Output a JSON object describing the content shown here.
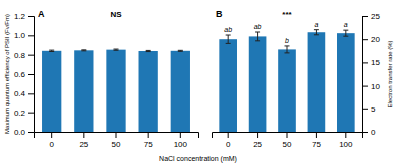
{
  "chart_data": [
    {
      "type": "bar",
      "categories": [
        "0",
        "25",
        "50",
        "75",
        "100"
      ],
      "values": [
        0.84,
        0.845,
        0.852,
        0.838,
        0.84
      ],
      "errors": [
        0.007,
        0.005,
        0.006,
        0.006,
        0.005
      ],
      "ylabel": "Maximum quantum efficiency of PSII (Fv/Fm)",
      "xlabel": "NaCl concentration (mM)",
      "ylim": [
        0.0,
        1.2
      ],
      "yticks": [
        {
          "value": 0,
          "label": "0.0"
        },
        0.2,
        0.4,
        0.6,
        0.8,
        {
          "value": 1,
          "label": "1.0"
        },
        1.2
      ],
      "annotations": [
        "A",
        "NS"
      ]
    },
    {
      "type": "bar",
      "categories": [
        "0",
        "25",
        "50",
        "75",
        "100"
      ],
      "values": [
        20.0,
        20.6,
        17.8,
        21.5,
        21.3
      ],
      "errors": [
        0.9,
        0.95,
        0.75,
        0.55,
        0.65
      ],
      "bar_labels": [
        "ab",
        "ab",
        "b",
        "a",
        "a"
      ],
      "ylabel": "Electron transfer rate (%)",
      "ylim": [
        0,
        25
      ],
      "yticks": [
        0,
        5,
        10,
        15,
        20,
        25
      ],
      "annotations": [
        "B",
        "***"
      ]
    }
  ]
}
